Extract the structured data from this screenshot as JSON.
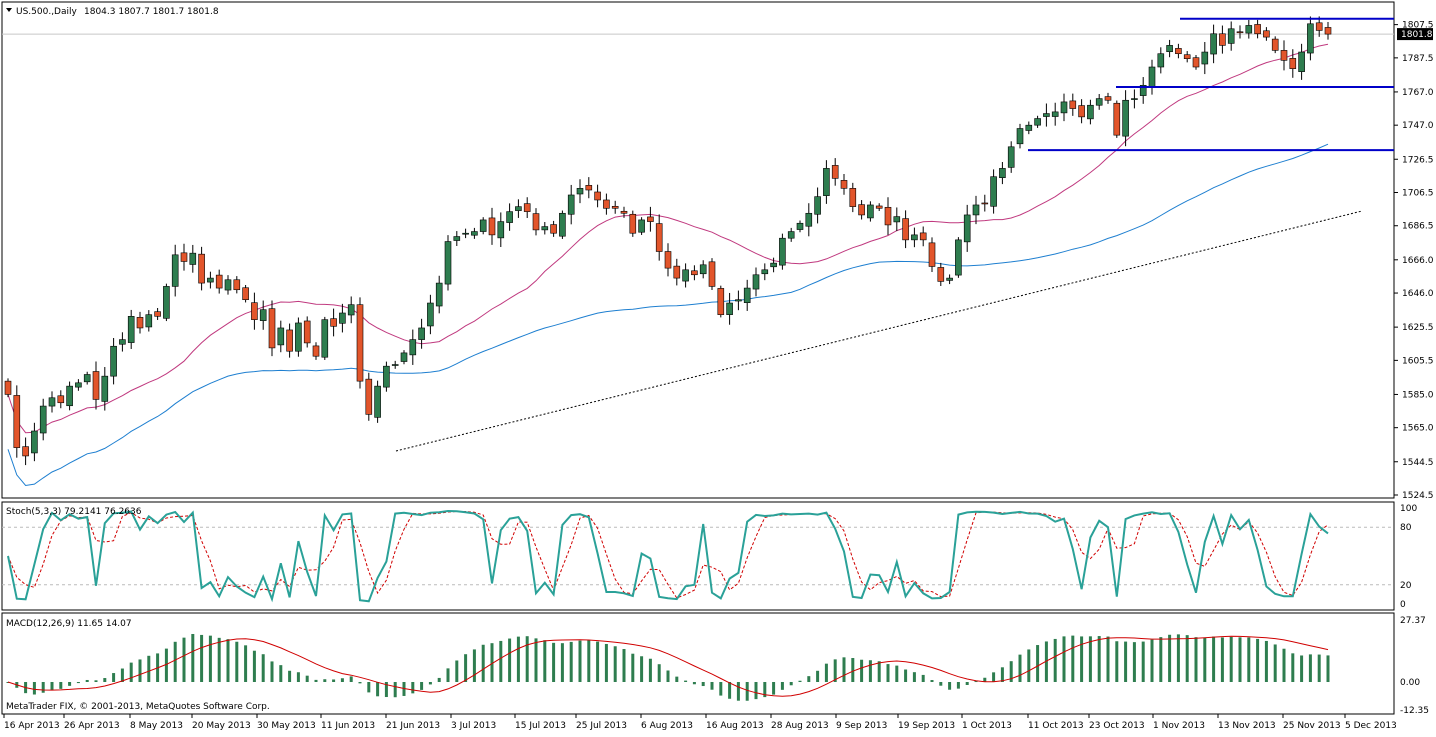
{
  "header": {
    "symbol": "US.500.,Daily",
    "ohlc": "1804.3 1807.7 1801.7 1801.8"
  },
  "price_scale_labels": [
    "1807.5",
    "1787.5",
    "1767.0",
    "1747.0",
    "1726.5",
    "1706.5",
    "1686.5",
    "1666.0",
    "1646.0",
    "1625.5",
    "1605.5",
    "1585.0",
    "1565.0",
    "1544.5",
    "1524.5"
  ],
  "current_price_label": "1801.8",
  "stoch": {
    "header": "Stoch(5,3,3) 79.2141 76.2636",
    "scale_labels": [
      "100",
      "80",
      "20",
      "0"
    ]
  },
  "macd": {
    "header": "MACD(12,26,9) 11.65 14.07",
    "scale_labels": [
      "27.37",
      "0.00",
      "-12.35"
    ],
    "copyright": "MetaTrader FIX, © 2001-2013, MetaQuotes Software Corp."
  },
  "date_labels": [
    "16 Apr 2013",
    "26 Apr 2013",
    "8 May 2013",
    "20 May 2013",
    "30 May 2013",
    "11 Jun 2013",
    "21 Jun 2013",
    "3 Jul 2013",
    "15 Jul 2013",
    "25 Jul 2013",
    "6 Aug 2013",
    "16 Aug 2013",
    "28 Aug 2013",
    "9 Sep 2013",
    "19 Sep 2013",
    "1 Oct 2013",
    "11 Oct 2013",
    "23 Oct 2013",
    "1 Nov 2013",
    "13 Nov 2013",
    "25 Nov 2013",
    "5 Dec 2013"
  ],
  "colors": {
    "bull": "#2e7d4f",
    "bear": "#e2552b",
    "ma_fast": "#c0397f",
    "ma_slow": "#1e7fd0",
    "stoch_main": "#2aa198",
    "stoch_signal": "#d00000",
    "macd_hist": "#2e7d4f",
    "macd_signal": "#d00000",
    "hline": "#0000c8"
  },
  "chart_data": {
    "type": "candlestick",
    "closes": [
      1585,
      1553,
      1548,
      1563,
      1578,
      1583,
      1580,
      1590,
      1592,
      1597,
      1582,
      1596,
      1614,
      1618,
      1632,
      1625,
      1633,
      1632,
      1650,
      1669,
      1665,
      1670,
      1652,
      1655,
      1649,
      1654,
      1648,
      1642,
      1630,
      1636,
      1613,
      1625,
      1611,
      1628,
      1616,
      1608,
      1630,
      1626,
      1634,
      1639,
      1593,
      1573,
      1590,
      1602,
      1603,
      1610,
      1618,
      1625,
      1640,
      1652,
      1677,
      1680,
      1682,
      1683,
      1690,
      1681,
      1689,
      1695,
      1698,
      1695,
      1684,
      1686,
      1682,
      1694,
      1705,
      1709,
      1708,
      1702,
      1697,
      1697,
      1694,
      1682,
      1690,
      1689,
      1671,
      1661,
      1655,
      1660,
      1657,
      1663,
      1650,
      1633,
      1640,
      1642,
      1649,
      1657,
      1660,
      1664,
      1679,
      1683,
      1688,
      1694,
      1704,
      1721,
      1715,
      1709,
      1698,
      1693,
      1699,
      1697,
      1687,
      1692,
      1678,
      1681,
      1678,
      1662,
      1653,
      1655,
      1678,
      1693,
      1699,
      1700,
      1716,
      1721,
      1734,
      1745,
      1747,
      1751,
      1754,
      1755,
      1761,
      1757,
      1752,
      1759,
      1763,
      1762,
      1741,
      1762,
      1763,
      1771,
      1782,
      1790,
      1795,
      1790,
      1787,
      1782,
      1791,
      1802,
      1795,
      1805,
      1803,
      1807,
      1802,
      1800,
      1792,
      1786,
      1781,
      1791,
      1808,
      1804,
      1801.8
    ],
    "ma_fast_period": 20,
    "ma_slow_period": 50,
    "stochastic": {
      "k": 79.2141,
      "d": 76.2636,
      "levels": [
        20,
        80
      ]
    },
    "macd": {
      "main": 11.65,
      "signal": 14.07
    },
    "horizontal_levels": [
      1811,
      1770,
      1732
    ],
    "ylim": [
      1524.5,
      1817.5
    ]
  }
}
